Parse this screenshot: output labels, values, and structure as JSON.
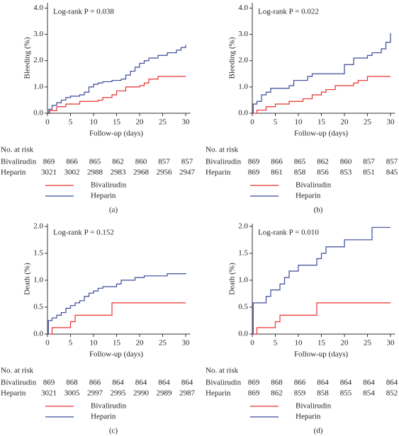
{
  "chart_data": [
    {
      "type": "step",
      "panel_label": "(a)",
      "annotation": "Log-rank P = 0.038",
      "y_label": "Bleeding (%)",
      "x_label": "Follow-up (days)",
      "xlim": [
        0,
        31
      ],
      "xticks": [
        0,
        5,
        10,
        15,
        20,
        25,
        30
      ],
      "ylim": [
        0,
        4.2
      ],
      "yticks": [
        {
          "value": 0,
          "label": "0.0"
        },
        {
          "value": 1,
          "label": "1.0"
        },
        {
          "value": 2,
          "label": "2.0"
        },
        {
          "value": 3,
          "label": "3.0"
        },
        {
          "value": 4,
          "label": "4.0"
        }
      ],
      "series": [
        {
          "name": "Bivalirudin",
          "color": "#e8312f",
          "x": [
            0,
            0.5,
            2,
            4,
            7,
            11,
            12,
            14,
            15,
            17,
            20,
            21,
            22,
            24,
            30
          ],
          "values": [
            0,
            0.1,
            0.25,
            0.35,
            0.45,
            0.5,
            0.6,
            0.7,
            0.85,
            1.0,
            1.05,
            1.15,
            1.3,
            1.4,
            1.4
          ]
        },
        {
          "name": "Heparin",
          "color": "#3c4a9a",
          "x": [
            0,
            0.3,
            1,
            2,
            3,
            4,
            5,
            7,
            8,
            9,
            10,
            11,
            12,
            14,
            16,
            17,
            18,
            19,
            20,
            21,
            22,
            24,
            26,
            28,
            29,
            30
          ],
          "values": [
            0,
            0.15,
            0.3,
            0.4,
            0.5,
            0.6,
            0.65,
            0.7,
            0.8,
            1.0,
            1.1,
            1.15,
            1.2,
            1.25,
            1.3,
            1.45,
            1.6,
            1.75,
            1.9,
            2.0,
            2.1,
            2.2,
            2.3,
            2.4,
            2.5,
            2.6
          ]
        }
      ],
      "risk_table": {
        "title": "No. at risk",
        "rows": [
          {
            "name": "Bivalirudin",
            "values": [
              869,
              866,
              865,
              862,
              860,
              857,
              857
            ]
          },
          {
            "name": "Heparin",
            "values": [
              3021,
              3002,
              2988,
              2983,
              2968,
              2956,
              2947
            ]
          }
        ]
      }
    },
    {
      "type": "step",
      "panel_label": "(b)",
      "annotation": "Log-rank P = 0.022",
      "y_label": "Bleeding (%)",
      "x_label": "Follow-up (days)",
      "xlim": [
        0,
        31
      ],
      "xticks": [
        0,
        5,
        10,
        15,
        20,
        25,
        30
      ],
      "ylim": [
        0,
        4.2
      ],
      "yticks": [
        {
          "value": 0,
          "label": "0.0"
        },
        {
          "value": 1,
          "label": "1.0"
        },
        {
          "value": 2,
          "label": "2.0"
        },
        {
          "value": 3,
          "label": "3.0"
        },
        {
          "value": 4,
          "label": "4.0"
        }
      ],
      "series": [
        {
          "name": "Bivalirudin",
          "color": "#e8312f",
          "x": [
            0,
            1,
            3,
            5,
            8,
            11,
            13,
            15,
            16,
            18,
            22,
            23,
            25,
            30
          ],
          "values": [
            0,
            0.12,
            0.25,
            0.35,
            0.45,
            0.55,
            0.7,
            0.8,
            0.9,
            1.05,
            1.15,
            1.25,
            1.4,
            1.4
          ]
        },
        {
          "name": "Heparin",
          "color": "#3c4a9a",
          "x": [
            0,
            0.2,
            1,
            2,
            3,
            4,
            8,
            9,
            12,
            13,
            20,
            22,
            25,
            26,
            28,
            29,
            30
          ],
          "values": [
            0,
            0.35,
            0.45,
            0.7,
            0.8,
            0.95,
            1.05,
            1.25,
            1.4,
            1.5,
            1.85,
            2.1,
            2.2,
            2.3,
            2.45,
            2.7,
            3.05
          ]
        }
      ],
      "risk_table": {
        "title": "No. at risk",
        "rows": [
          {
            "name": "Bivalirudin",
            "values": [
              869,
              866,
              865,
              862,
              860,
              857,
              857
            ]
          },
          {
            "name": "Heparin",
            "values": [
              869,
              861,
              858,
              856,
              853,
              851,
              845
            ]
          }
        ]
      }
    },
    {
      "type": "step",
      "panel_label": "(c)",
      "annotation": "Log-rank P = 0.152",
      "y_label": "Death (%)",
      "x_label": "Follow-up (days)",
      "xlim": [
        0,
        31
      ],
      "xticks": [
        0,
        5,
        10,
        15,
        20,
        25,
        30
      ],
      "ylim": [
        0,
        2.05
      ],
      "yticks": [
        {
          "value": 0,
          "label": "0.0"
        },
        0.5,
        {
          "value": 1,
          "label": "1.0"
        },
        1.5,
        {
          "value": 2,
          "label": "2.0"
        }
      ],
      "series": [
        {
          "name": "Bivalirudin",
          "color": "#e8312f",
          "x": [
            0,
            1,
            5,
            6,
            14,
            30
          ],
          "values": [
            0,
            0.12,
            0.23,
            0.35,
            0.58,
            0.58
          ]
        },
        {
          "name": "Heparin",
          "color": "#3c4a9a",
          "x": [
            0,
            0.2,
            1,
            2,
            3,
            4,
            5,
            6,
            7,
            8,
            9,
            10,
            11,
            12,
            15,
            16,
            19,
            21,
            26,
            30
          ],
          "values": [
            0,
            0.25,
            0.3,
            0.35,
            0.4,
            0.48,
            0.53,
            0.58,
            0.62,
            0.7,
            0.76,
            0.8,
            0.85,
            0.88,
            0.93,
            1.0,
            1.05,
            1.08,
            1.12,
            1.13
          ]
        }
      ],
      "risk_table": {
        "title": "No. at risk",
        "rows": [
          {
            "name": "Bivalirudin",
            "values": [
              869,
              868,
              866,
              864,
              864,
              864,
              864
            ]
          },
          {
            "name": "Heparin",
            "values": [
              3021,
              3005,
              2997,
              2995,
              2990,
              2989,
              2987
            ]
          }
        ]
      }
    },
    {
      "type": "step",
      "panel_label": "(d)",
      "annotation": "Log-rank P = 0.010",
      "y_label": "Death (%)",
      "x_label": "Follow-up (days)",
      "xlim": [
        0,
        31
      ],
      "xticks": [
        0,
        5,
        10,
        15,
        20,
        25,
        30
      ],
      "ylim": [
        0,
        2.05
      ],
      "yticks": [
        {
          "value": 0,
          "label": "0.0"
        },
        0.5,
        {
          "value": 1,
          "label": "1.0"
        },
        1.5,
        {
          "value": 2,
          "label": "2.0"
        }
      ],
      "series": [
        {
          "name": "Bivalirudin",
          "color": "#e8312f",
          "x": [
            0,
            1,
            5,
            6,
            14,
            30
          ],
          "values": [
            0,
            0.12,
            0.23,
            0.35,
            0.58,
            0.58
          ]
        },
        {
          "name": "Heparin",
          "color": "#3c4a9a",
          "x": [
            0,
            0.2,
            3,
            4,
            6,
            7,
            8,
            10,
            14,
            15,
            16,
            20,
            26,
            30
          ],
          "values": [
            0,
            0.58,
            0.7,
            0.82,
            0.93,
            1.05,
            1.17,
            1.28,
            1.4,
            1.5,
            1.62,
            1.75,
            1.98,
            1.98
          ]
        }
      ],
      "risk_table": {
        "title": "No. at risk",
        "rows": [
          {
            "name": "Bivalirudin",
            "values": [
              869,
              868,
              866,
              864,
              864,
              864,
              864
            ]
          },
          {
            "name": "Heparin",
            "values": [
              869,
              862,
              859,
              858,
              855,
              854,
              852
            ]
          }
        ]
      }
    }
  ]
}
